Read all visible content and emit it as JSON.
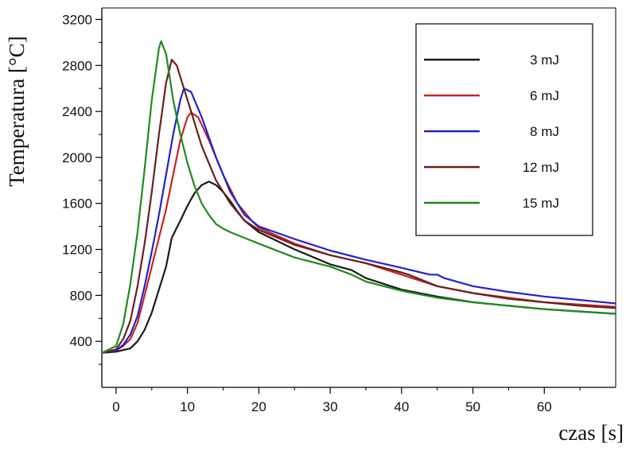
{
  "chart_data": {
    "type": "line",
    "title": "",
    "xlabel": "czas [s]",
    "ylabel": "Temperatura [°C]",
    "xlim": [
      -2,
      70
    ],
    "ylim": [
      0,
      3300
    ],
    "x_ticks": [
      0,
      10,
      20,
      30,
      40,
      50,
      60
    ],
    "x_tick_labels": [
      "0",
      "10",
      "20",
      "30",
      "40",
      "50",
      "60"
    ],
    "y_ticks": [
      400,
      800,
      1200,
      1600,
      2000,
      2400,
      2800,
      3200
    ],
    "y_tick_labels": [
      "400",
      "800",
      "1200",
      "1600",
      "2000",
      "2400",
      "2800",
      "3200"
    ],
    "grid": false,
    "legend_position": "top-right",
    "series": [
      {
        "name": "3 mJ",
        "color": "#1a1a1a",
        "points": [
          [
            -2,
            300
          ],
          [
            0,
            310
          ],
          [
            2,
            340
          ],
          [
            3,
            400
          ],
          [
            4,
            500
          ],
          [
            5,
            650
          ],
          [
            6,
            850
          ],
          [
            7,
            1050
          ],
          [
            7.8,
            1300
          ],
          [
            9,
            1450
          ],
          [
            10,
            1580
          ],
          [
            11,
            1690
          ],
          [
            12,
            1760
          ],
          [
            13,
            1790
          ],
          [
            14,
            1760
          ],
          [
            15,
            1700
          ],
          [
            16,
            1620
          ],
          [
            17,
            1530
          ],
          [
            18,
            1450
          ],
          [
            20,
            1350
          ],
          [
            25,
            1200
          ],
          [
            30,
            1070
          ],
          [
            33,
            1020
          ],
          [
            35,
            950
          ],
          [
            40,
            850
          ],
          [
            45,
            790
          ],
          [
            50,
            740
          ],
          [
            55,
            710
          ],
          [
            60,
            680
          ],
          [
            65,
            660
          ],
          [
            70,
            640
          ]
        ]
      },
      {
        "name": "6 mJ",
        "color": "#cc2222",
        "points": [
          [
            -2,
            300
          ],
          [
            0,
            320
          ],
          [
            1,
            360
          ],
          [
            2,
            420
          ],
          [
            3,
            560
          ],
          [
            4,
            800
          ],
          [
            5,
            1050
          ],
          [
            6,
            1300
          ],
          [
            7,
            1550
          ],
          [
            8,
            1850
          ],
          [
            9,
            2150
          ],
          [
            10,
            2350
          ],
          [
            10.5,
            2390
          ],
          [
            11.5,
            2350
          ],
          [
            13,
            2150
          ],
          [
            15,
            1850
          ],
          [
            17,
            1600
          ],
          [
            19,
            1450
          ],
          [
            20,
            1390
          ],
          [
            25,
            1250
          ],
          [
            30,
            1150
          ],
          [
            35,
            1080
          ],
          [
            40,
            980
          ],
          [
            45,
            880
          ],
          [
            50,
            820
          ],
          [
            55,
            780
          ],
          [
            60,
            740
          ],
          [
            65,
            720
          ],
          [
            70,
            700
          ]
        ]
      },
      {
        "name": "8 mJ",
        "color": "#2222cc",
        "points": [
          [
            -2,
            300
          ],
          [
            0,
            320
          ],
          [
            1,
            370
          ],
          [
            2,
            460
          ],
          [
            3,
            620
          ],
          [
            4,
            880
          ],
          [
            5,
            1180
          ],
          [
            6,
            1500
          ],
          [
            7,
            1850
          ],
          [
            8,
            2200
          ],
          [
            9,
            2500
          ],
          [
            9.5,
            2600
          ],
          [
            10.5,
            2570
          ],
          [
            12,
            2350
          ],
          [
            14,
            2000
          ],
          [
            16,
            1700
          ],
          [
            18,
            1500
          ],
          [
            20,
            1400
          ],
          [
            25,
            1290
          ],
          [
            30,
            1190
          ],
          [
            35,
            1110
          ],
          [
            40,
            1040
          ],
          [
            44,
            980
          ],
          [
            45,
            980
          ],
          [
            46,
            950
          ],
          [
            50,
            880
          ],
          [
            55,
            830
          ],
          [
            60,
            790
          ],
          [
            65,
            760
          ],
          [
            70,
            730
          ]
        ]
      },
      {
        "name": "12 mJ",
        "color": "#6b1f1f",
        "points": [
          [
            -2,
            300
          ],
          [
            0,
            330
          ],
          [
            1,
            420
          ],
          [
            2,
            580
          ],
          [
            3,
            880
          ],
          [
            4,
            1250
          ],
          [
            5,
            1700
          ],
          [
            6,
            2200
          ],
          [
            7,
            2650
          ],
          [
            7.8,
            2850
          ],
          [
            8.5,
            2800
          ],
          [
            10,
            2500
          ],
          [
            12,
            2100
          ],
          [
            14,
            1800
          ],
          [
            16,
            1600
          ],
          [
            18,
            1450
          ],
          [
            20,
            1370
          ],
          [
            25,
            1240
          ],
          [
            30,
            1150
          ],
          [
            35,
            1080
          ],
          [
            40,
            1000
          ],
          [
            41,
            980
          ],
          [
            45,
            880
          ],
          [
            50,
            820
          ],
          [
            55,
            770
          ],
          [
            60,
            740
          ],
          [
            65,
            710
          ],
          [
            70,
            690
          ]
        ]
      },
      {
        "name": "15 mJ",
        "color": "#1f8a1f",
        "points": [
          [
            -2,
            300
          ],
          [
            0,
            360
          ],
          [
            1,
            550
          ],
          [
            2,
            900
          ],
          [
            3,
            1350
          ],
          [
            4,
            1900
          ],
          [
            5,
            2500
          ],
          [
            6,
            2950
          ],
          [
            6.3,
            3010
          ],
          [
            7,
            2900
          ],
          [
            8,
            2500
          ],
          [
            9,
            2200
          ],
          [
            10,
            1950
          ],
          [
            11,
            1750
          ],
          [
            12,
            1600
          ],
          [
            13,
            1500
          ],
          [
            14,
            1420
          ],
          [
            15,
            1380
          ],
          [
            16,
            1350
          ],
          [
            18,
            1300
          ],
          [
            20,
            1250
          ],
          [
            25,
            1130
          ],
          [
            30,
            1050
          ],
          [
            33,
            980
          ],
          [
            35,
            920
          ],
          [
            40,
            840
          ],
          [
            45,
            780
          ],
          [
            50,
            740
          ],
          [
            55,
            710
          ],
          [
            60,
            680
          ],
          [
            65,
            660
          ],
          [
            70,
            640
          ]
        ]
      }
    ]
  }
}
